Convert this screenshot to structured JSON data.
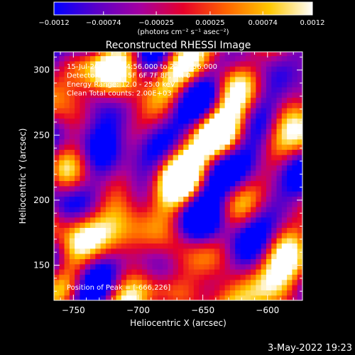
{
  "chart_data": {
    "type": "heatmap",
    "title": "Reconstructed RHESSI Image",
    "xlabel": "Heliocentric X (arcsec)",
    "ylabel": "Heliocentric Y (arcsec)",
    "xlim": [
      -765,
      -573
    ],
    "ylim": [
      123,
      314
    ],
    "x_ticks": [
      -750,
      -700,
      -650,
      -600
    ],
    "y_ticks": [
      150,
      200,
      250,
      300
    ],
    "colorbar": {
      "range": [
        -0.0012,
        0.0012
      ],
      "tick_values": [
        -0.0012,
        -0.00074,
        -0.00025,
        0.00025,
        0.00074,
        0.0012
      ],
      "tick_labels": [
        "-0.0012",
        "-0.00074",
        "-0.00025",
        "0.00025",
        "0.00074",
        "0.0012"
      ],
      "unit_label": "(photons cm⁻² s⁻¹ asec⁻²)",
      "colors": [
        "#0000ff",
        "#5b00c8",
        "#a500a0",
        "#e6002a",
        "#ff6400",
        "#ffc800",
        "#ffffff"
      ]
    },
    "annotations": [
      "15-Jul-2003 22:24:56.000 to 22:30:56.000",
      "Detectors: 3F 4F 5F 6F 7F 8F, Att 0",
      "Energy Range: 12.0 - 25.0 keV",
      "Clean    Total counts: 2.00E+03"
    ],
    "peak_label": "Position of Peak = [-666,226]",
    "peak": [
      -666,
      226
    ]
  },
  "footer": {
    "date": "3-May-2022 19:23"
  }
}
